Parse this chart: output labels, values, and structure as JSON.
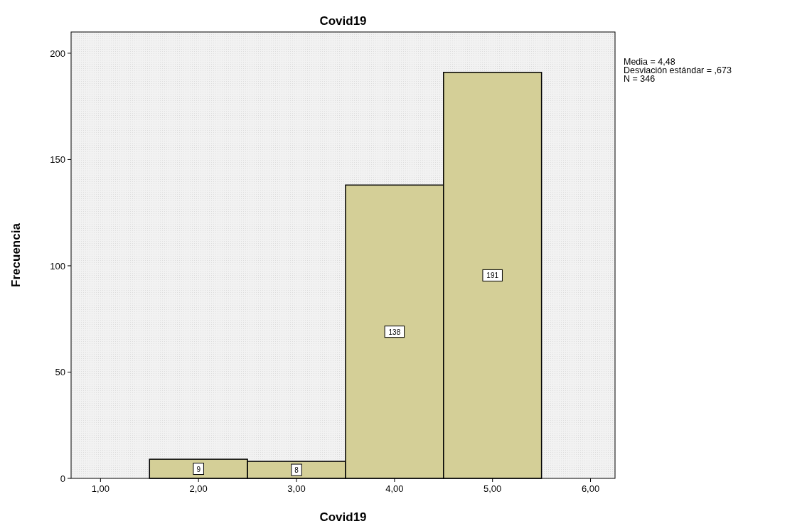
{
  "chart_data": {
    "type": "histogram",
    "title": "Covid19",
    "xlabel": "Covid19",
    "ylabel": "Frecuencia",
    "bins": [
      1.5,
      2.5,
      3.5,
      4.5,
      5.5
    ],
    "values": [
      9,
      8,
      138,
      191
    ],
    "color": "#d4cf97",
    "data_labels": true,
    "xlim": [
      0.7,
      6.25
    ],
    "xticks": [
      {
        "value": 1,
        "label": "1,00"
      },
      {
        "value": 2,
        "label": "2,00"
      },
      {
        "value": 3,
        "label": "3,00"
      },
      {
        "value": 4,
        "label": "4,00"
      },
      {
        "value": 5,
        "label": "5,00"
      },
      {
        "value": 6,
        "label": "6,00"
      }
    ],
    "ylim": [
      0,
      210
    ],
    "yticks": [
      0,
      50,
      100,
      150,
      200
    ],
    "annotations": [
      "Media = 4,48",
      "Desviación estándar = ,673",
      "N = 346"
    ]
  }
}
